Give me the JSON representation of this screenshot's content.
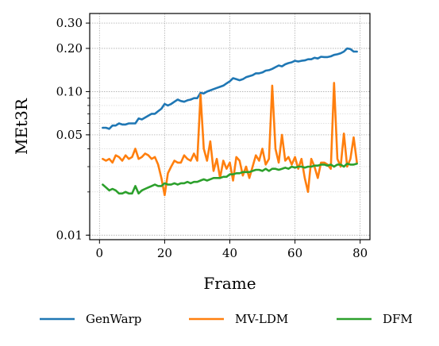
{
  "chart_data": {
    "type": "line",
    "xlabel": "Frame",
    "ylabel": "MEt3R",
    "yscale": "log",
    "xlim": [
      -3,
      83
    ],
    "ylim": [
      0.0093,
      0.35
    ],
    "grid": true,
    "legend_position": "bottom",
    "x_ticks": [
      0,
      20,
      40,
      60,
      80
    ],
    "x_tick_labels": [
      "0",
      "20",
      "40",
      "60",
      "80"
    ],
    "y_ticks": [
      0.01,
      0.05,
      0.1,
      0.2,
      0.3
    ],
    "y_tick_labels": [
      "0.01",
      "0.05",
      "0.10",
      "0.20",
      "0.30"
    ],
    "x": [
      1,
      2,
      3,
      4,
      5,
      6,
      7,
      8,
      9,
      10,
      11,
      12,
      13,
      14,
      15,
      16,
      17,
      18,
      19,
      20,
      21,
      22,
      23,
      24,
      25,
      26,
      27,
      28,
      29,
      30,
      31,
      32,
      33,
      34,
      35,
      36,
      37,
      38,
      39,
      40,
      41,
      42,
      43,
      44,
      45,
      46,
      47,
      48,
      49,
      50,
      51,
      52,
      53,
      54,
      55,
      56,
      57,
      58,
      59,
      60,
      61,
      62,
      63,
      64,
      65,
      66,
      67,
      68,
      69,
      70,
      71,
      72,
      73,
      74,
      75,
      76,
      77,
      78,
      79
    ],
    "series": [
      {
        "name": "GenWarp",
        "color": "#1f77b4",
        "values": [
          0.056,
          0.056,
          0.055,
          0.058,
          0.058,
          0.06,
          0.059,
          0.059,
          0.06,
          0.06,
          0.06,
          0.065,
          0.064,
          0.066,
          0.068,
          0.07,
          0.07,
          0.073,
          0.076,
          0.082,
          0.08,
          0.082,
          0.085,
          0.088,
          0.086,
          0.085,
          0.087,
          0.088,
          0.09,
          0.09,
          0.098,
          0.097,
          0.1,
          0.102,
          0.104,
          0.106,
          0.108,
          0.11,
          0.114,
          0.118,
          0.124,
          0.122,
          0.12,
          0.122,
          0.126,
          0.128,
          0.13,
          0.134,
          0.134,
          0.136,
          0.14,
          0.141,
          0.144,
          0.148,
          0.152,
          0.15,
          0.155,
          0.158,
          0.16,
          0.164,
          0.162,
          0.164,
          0.165,
          0.168,
          0.168,
          0.172,
          0.17,
          0.175,
          0.174,
          0.174,
          0.176,
          0.18,
          0.182,
          0.185,
          0.19,
          0.2,
          0.198,
          0.19,
          0.19
        ]
      },
      {
        "name": "MV-LDM",
        "color": "#ff7f0e",
        "values": [
          0.034,
          0.033,
          0.034,
          0.032,
          0.036,
          0.035,
          0.033,
          0.036,
          0.034,
          0.035,
          0.04,
          0.034,
          0.035,
          0.037,
          0.036,
          0.034,
          0.035,
          0.031,
          0.025,
          0.019,
          0.027,
          0.03,
          0.033,
          0.032,
          0.032,
          0.036,
          0.034,
          0.033,
          0.037,
          0.033,
          0.095,
          0.04,
          0.033,
          0.045,
          0.028,
          0.034,
          0.025,
          0.033,
          0.029,
          0.032,
          0.024,
          0.035,
          0.033,
          0.026,
          0.03,
          0.025,
          0.03,
          0.036,
          0.033,
          0.04,
          0.031,
          0.034,
          0.11,
          0.04,
          0.032,
          0.05,
          0.033,
          0.035,
          0.031,
          0.035,
          0.029,
          0.034,
          0.025,
          0.02,
          0.034,
          0.03,
          0.025,
          0.032,
          0.032,
          0.031,
          0.029,
          0.115,
          0.034,
          0.03,
          0.051,
          0.03,
          0.034,
          0.048,
          0.032
        ]
      },
      {
        "name": "DFM",
        "color": "#2ca02c",
        "values": [
          0.0225,
          0.0215,
          0.0205,
          0.021,
          0.0205,
          0.0195,
          0.0195,
          0.02,
          0.0195,
          0.0195,
          0.022,
          0.0195,
          0.0205,
          0.021,
          0.0215,
          0.022,
          0.0225,
          0.022,
          0.022,
          0.023,
          0.0225,
          0.0225,
          0.023,
          0.0225,
          0.023,
          0.023,
          0.0235,
          0.023,
          0.0235,
          0.0235,
          0.024,
          0.0245,
          0.024,
          0.0245,
          0.025,
          0.025,
          0.025,
          0.0255,
          0.0255,
          0.0265,
          0.0265,
          0.027,
          0.027,
          0.0275,
          0.0275,
          0.0275,
          0.028,
          0.0285,
          0.0285,
          0.028,
          0.029,
          0.028,
          0.029,
          0.029,
          0.0285,
          0.029,
          0.0295,
          0.029,
          0.03,
          0.0295,
          0.03,
          0.03,
          0.0295,
          0.03,
          0.03,
          0.0305,
          0.0305,
          0.031,
          0.031,
          0.0305,
          0.031,
          0.03,
          0.031,
          0.031,
          0.03,
          0.0315,
          0.031,
          0.031,
          0.0315
        ]
      }
    ]
  }
}
